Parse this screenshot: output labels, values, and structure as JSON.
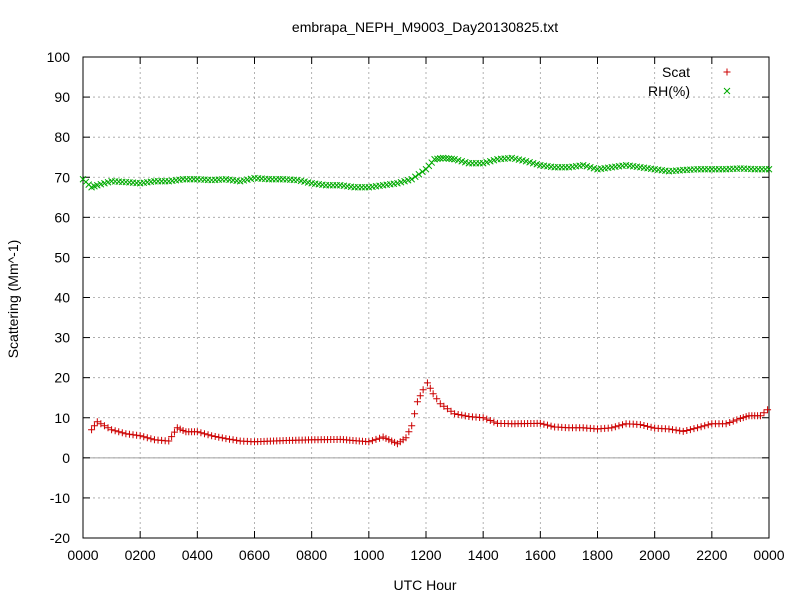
{
  "chart_data": {
    "type": "scatter",
    "title": "embrapa_NEPH_M9003_Day20130825.txt",
    "xlabel": "UTC Hour",
    "ylabel": "Scattering (Mm^-1)",
    "xlim": [
      0,
      24
    ],
    "ylim": [
      -20,
      100
    ],
    "x_ticks": [
      0,
      2,
      4,
      6,
      8,
      10,
      12,
      14,
      16,
      18,
      20,
      22,
      24
    ],
    "x_tick_labels": [
      "0000",
      "0200",
      "0400",
      "0600",
      "0800",
      "1000",
      "1200",
      "1400",
      "1600",
      "1800",
      "2000",
      "2200",
      "0000"
    ],
    "y_ticks": [
      -20,
      -10,
      0,
      10,
      20,
      30,
      40,
      50,
      60,
      70,
      80,
      90,
      100
    ],
    "y_tick_labels": [
      "-20",
      "-10",
      "0",
      "10",
      "20",
      "30",
      "40",
      "50",
      "60",
      "70",
      "80",
      "90",
      "100"
    ],
    "grid": true,
    "zero_line": true,
    "legend_position": "top-right",
    "series": [
      {
        "name": "Scat",
        "marker": "plus",
        "color": "#cc0000",
        "points": [
          [
            0.3,
            7.0
          ],
          [
            0.5,
            9.0
          ],
          [
            0.75,
            8.0
          ],
          [
            1.0,
            7.0
          ],
          [
            1.5,
            6.0
          ],
          [
            2.0,
            5.5
          ],
          [
            2.5,
            4.5
          ],
          [
            3.0,
            4.2
          ],
          [
            3.3,
            7.5
          ],
          [
            3.6,
            6.5
          ],
          [
            4.0,
            6.5
          ],
          [
            4.5,
            5.5
          ],
          [
            5.0,
            4.8
          ],
          [
            5.5,
            4.2
          ],
          [
            6.0,
            4.0
          ],
          [
            7.0,
            4.3
          ],
          [
            8.0,
            4.5
          ],
          [
            9.0,
            4.6
          ],
          [
            10.0,
            4.0
          ],
          [
            10.5,
            5.2
          ],
          [
            10.8,
            4.2
          ],
          [
            11.0,
            3.5
          ],
          [
            11.3,
            5.0
          ],
          [
            11.5,
            8.0
          ],
          [
            11.7,
            14.0
          ],
          [
            11.9,
            17.0
          ],
          [
            12.05,
            18.7
          ],
          [
            12.25,
            16.0
          ],
          [
            12.5,
            13.5
          ],
          [
            13.0,
            11.0
          ],
          [
            13.5,
            10.3
          ],
          [
            14.0,
            10.0
          ],
          [
            14.5,
            8.6
          ],
          [
            15.0,
            8.5
          ],
          [
            16.0,
            8.6
          ],
          [
            16.5,
            7.7
          ],
          [
            17.0,
            7.5
          ],
          [
            17.5,
            7.5
          ],
          [
            18.0,
            7.2
          ],
          [
            18.5,
            7.5
          ],
          [
            19.0,
            8.5
          ],
          [
            19.5,
            8.3
          ],
          [
            20.0,
            7.4
          ],
          [
            20.5,
            7.2
          ],
          [
            21.0,
            6.6
          ],
          [
            21.5,
            7.5
          ],
          [
            22.0,
            8.5
          ],
          [
            22.5,
            8.5
          ],
          [
            23.0,
            9.8
          ],
          [
            23.3,
            10.5
          ],
          [
            23.7,
            10.5
          ],
          [
            23.95,
            12.0
          ]
        ]
      },
      {
        "name": "RH(%)",
        "marker": "cross",
        "color": "#00aa00",
        "points": [
          [
            0.0,
            69.5
          ],
          [
            0.3,
            67.5
          ],
          [
            0.5,
            68.0
          ],
          [
            1.0,
            69.0
          ],
          [
            1.5,
            68.8
          ],
          [
            2.0,
            68.5
          ],
          [
            2.5,
            69.0
          ],
          [
            3.0,
            69.0
          ],
          [
            3.5,
            69.5
          ],
          [
            4.0,
            69.5
          ],
          [
            4.5,
            69.3
          ],
          [
            5.0,
            69.5
          ],
          [
            5.5,
            69.0
          ],
          [
            6.0,
            69.8
          ],
          [
            6.5,
            69.5
          ],
          [
            7.0,
            69.5
          ],
          [
            7.5,
            69.3
          ],
          [
            8.0,
            68.5
          ],
          [
            8.5,
            68.0
          ],
          [
            9.0,
            68.0
          ],
          [
            9.5,
            67.5
          ],
          [
            10.0,
            67.5
          ],
          [
            10.5,
            68.0
          ],
          [
            11.0,
            68.5
          ],
          [
            11.5,
            69.5
          ],
          [
            12.0,
            72.0
          ],
          [
            12.3,
            74.5
          ],
          [
            12.6,
            74.8
          ],
          [
            13.0,
            74.5
          ],
          [
            13.5,
            73.5
          ],
          [
            14.0,
            73.5
          ],
          [
            14.5,
            74.5
          ],
          [
            15.0,
            74.8
          ],
          [
            15.5,
            74.0
          ],
          [
            16.0,
            73.0
          ],
          [
            16.5,
            72.5
          ],
          [
            17.0,
            72.5
          ],
          [
            17.5,
            73.0
          ],
          [
            18.0,
            72.0
          ],
          [
            18.5,
            72.5
          ],
          [
            19.0,
            73.0
          ],
          [
            19.5,
            72.5
          ],
          [
            20.0,
            72.0
          ],
          [
            20.5,
            71.5
          ],
          [
            21.0,
            71.8
          ],
          [
            21.5,
            72.0
          ],
          [
            22.0,
            72.0
          ],
          [
            22.5,
            72.0
          ],
          [
            23.0,
            72.2
          ],
          [
            23.5,
            72.0
          ],
          [
            24.0,
            72.0
          ]
        ]
      }
    ]
  }
}
